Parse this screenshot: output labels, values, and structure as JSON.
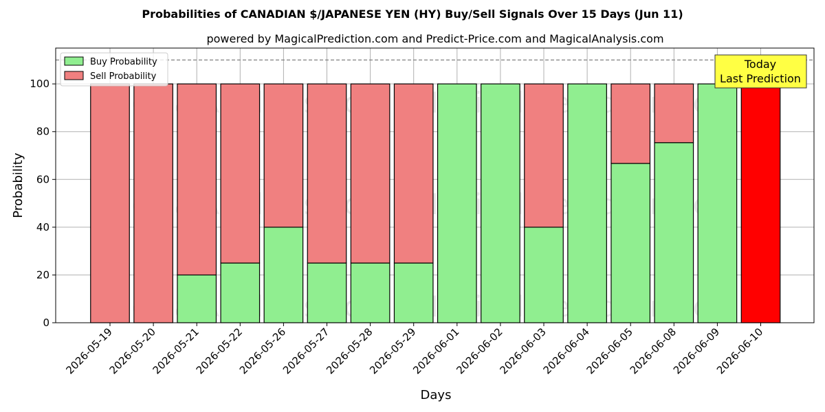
{
  "chart_data": {
    "type": "bar",
    "stacked": true,
    "title": "Probabilities of CANADIAN $/JAPANESE YEN (HY) Buy/Sell Signals Over 15 Days (Jun 11)",
    "subtitle": "powered by MagicalPrediction.com and Predict-Price.com and MagicalAnalysis.com",
    "xlabel": "Days",
    "ylabel": "Probability",
    "ylim": [
      0,
      115
    ],
    "yticks": [
      0,
      20,
      40,
      60,
      80,
      100
    ],
    "grid": true,
    "legend_position": "top-left",
    "categories": [
      "2026-05-19",
      "2026-05-20",
      "2026-05-21",
      "2026-05-22",
      "2026-05-26",
      "2026-05-27",
      "2026-05-28",
      "2026-05-29",
      "2026-06-01",
      "2026-06-02",
      "2026-06-03",
      "2026-06-04",
      "2026-06-05",
      "2026-06-08",
      "2026-06-09",
      "2026-06-10"
    ],
    "series": [
      {
        "name": "Buy Probability",
        "color": "#90ee90",
        "values": [
          0,
          0,
          20,
          25,
          40,
          25,
          25,
          25,
          100,
          100,
          40,
          100,
          66.7,
          75.4,
          100,
          0
        ]
      },
      {
        "name": "Sell Probability",
        "color": "#f08080",
        "values": [
          100,
          100,
          80,
          75,
          60,
          75,
          75,
          75,
          0,
          0,
          60,
          0,
          33.3,
          24.6,
          0,
          100
        ]
      }
    ],
    "highlight": {
      "category": "2026-06-10",
      "color": "#ff0000"
    },
    "reference_line": {
      "y": 110,
      "style": "dashed",
      "color": "#808080"
    },
    "annotation": {
      "lines": [
        "Today",
        "Last Prediction"
      ],
      "background": "#ffff44"
    },
    "watermarks": [
      "MagicalAnalysis.com",
      "MagicalPrediction.com"
    ]
  }
}
